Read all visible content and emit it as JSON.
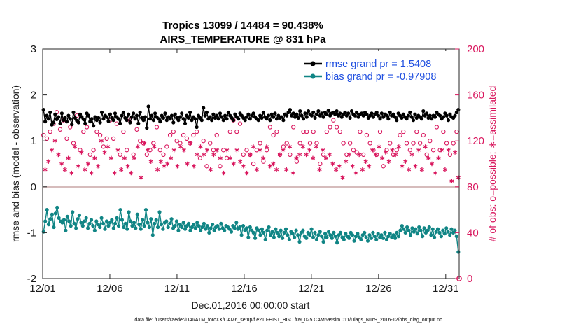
{
  "chart_data": {
    "type": "line",
    "title_line1": "Tropics 13099 / 14484 = 90.438%",
    "title_line2": "AIRS_TEMPERATURE @ 831 hPa",
    "xlabel": "Dec.01,2016 00:00:00 start",
    "ylabel_left": "rmse and bias (model - observation)",
    "ylabel_right": "# of obs: o=possible; ∗=assimilated",
    "x_range": [
      1,
      32
    ],
    "y_range_left": [
      -2,
      3
    ],
    "y_range_right": [
      0,
      200
    ],
    "x_ticks": [
      {
        "value": 1,
        "label": "12/01"
      },
      {
        "value": 6,
        "label": "12/06"
      },
      {
        "value": 11,
        "label": "12/11"
      },
      {
        "value": 16,
        "label": "12/16"
      },
      {
        "value": 21,
        "label": "12/21"
      },
      {
        "value": 26,
        "label": "12/26"
      },
      {
        "value": 31,
        "label": "12/31"
      }
    ],
    "y_ticks_left": [
      "-2",
      "-1",
      "0",
      "1",
      "2",
      "3"
    ],
    "y_ticks_right": [
      "0",
      "40",
      "80",
      "120",
      "160",
      "200"
    ],
    "legend": [
      {
        "label": "rmse grand pr = 1.5408",
        "color": "#000000"
      },
      {
        "label": "bias grand pr = -0.97908",
        "color": "#108585"
      }
    ],
    "series": [
      {
        "name": "rmse",
        "axis": "left",
        "color": "#000000",
        "values": [
          1.68,
          1.42,
          1.55,
          1.48,
          1.62,
          1.35,
          1.4,
          1.58,
          1.47,
          1.52,
          1.38,
          1.6,
          1.45,
          1.5,
          1.42,
          1.55,
          1.48,
          1.36,
          1.62,
          1.5,
          1.44,
          1.4,
          1.58,
          1.52,
          1.47,
          1.38,
          1.6,
          1.55,
          1.42,
          1.48,
          1.33,
          1.52,
          1.45,
          1.5,
          1.4,
          1.62,
          1.48,
          1.55,
          1.52,
          1.43,
          1.58,
          1.5,
          1.45,
          1.6,
          1.52,
          1.48,
          1.38,
          1.55,
          1.62,
          1.5,
          1.45,
          1.58,
          1.4,
          1.52,
          1.6,
          1.48,
          1.55,
          1.38,
          1.62,
          1.5,
          1.45,
          1.52,
          1.28,
          1.75,
          1.48,
          1.55,
          1.45,
          1.6,
          1.52,
          1.48,
          1.42,
          1.55,
          1.5,
          1.6,
          1.45,
          1.52,
          1.48,
          1.55,
          1.4,
          1.58,
          1.5,
          1.45,
          1.52,
          1.6,
          1.48,
          1.38,
          1.55,
          1.5,
          1.62,
          1.45,
          1.52,
          1.48,
          1.3,
          1.55,
          1.5,
          1.45,
          1.72,
          1.55,
          1.62,
          1.48,
          1.52,
          1.45,
          1.58,
          1.5,
          1.55,
          1.48,
          1.6,
          1.52,
          1.45,
          1.55,
          1.48,
          1.62,
          1.55,
          1.5,
          1.45,
          1.58,
          1.52,
          1.48,
          1.6,
          1.55,
          1.5,
          1.45,
          1.52,
          1.58,
          1.48,
          1.55,
          1.6,
          1.52,
          1.48,
          1.45,
          1.55,
          1.5,
          1.62,
          1.52,
          1.48,
          1.55,
          1.45,
          1.58,
          1.52,
          1.6,
          1.48,
          1.55,
          1.5,
          1.52,
          1.45,
          1.58,
          1.55,
          1.62,
          1.68,
          1.55,
          1.6,
          1.52,
          1.58,
          1.5,
          1.65,
          1.55,
          1.48,
          1.6,
          1.52,
          1.65,
          1.58,
          1.55,
          1.62,
          1.5,
          1.58,
          1.65,
          1.55,
          1.6,
          1.52,
          1.62,
          1.58,
          1.66,
          1.55,
          1.6,
          1.62,
          1.58,
          1.65,
          1.55,
          1.6,
          1.52,
          1.58,
          1.62,
          1.55,
          1.6,
          1.5,
          1.65,
          1.58,
          1.55,
          1.62,
          1.52,
          1.58,
          1.6,
          1.55,
          1.62,
          1.58,
          1.5,
          1.55,
          1.6,
          1.52,
          1.58,
          1.62,
          1.55,
          1.48,
          1.6,
          1.52,
          1.58,
          1.55,
          1.48,
          1.62,
          1.55,
          1.58,
          1.52,
          1.45,
          1.6,
          1.55,
          1.5,
          1.58,
          1.52,
          1.48,
          1.55,
          1.62,
          1.52,
          1.45,
          1.58,
          1.5,
          1.55,
          1.52,
          1.48,
          1.65,
          1.55,
          1.6,
          1.5,
          1.55,
          1.48,
          1.55,
          1.52,
          1.62,
          1.58,
          1.55,
          1.48,
          1.52,
          1.6,
          1.55,
          1.45,
          1.58,
          1.52,
          1.5,
          1.55,
          1.62,
          1.68
        ]
      },
      {
        "name": "bias",
        "axis": "left",
        "color": "#108585",
        "values": [
          -0.98,
          -0.75,
          -0.5,
          -0.82,
          -0.7,
          -0.6,
          -0.88,
          -0.58,
          -0.45,
          -0.68,
          -0.75,
          -0.78,
          -0.72,
          -0.95,
          -0.65,
          -0.75,
          -0.85,
          -0.55,
          -0.8,
          -0.9,
          -0.7,
          -0.62,
          -0.78,
          -0.85,
          -0.75,
          -0.68,
          -0.9,
          -0.8,
          -0.72,
          -0.85,
          -0.95,
          -0.75,
          -0.82,
          -0.88,
          -0.68,
          -0.8,
          -0.92,
          -0.75,
          -0.85,
          -0.78,
          -0.72,
          -0.9,
          -0.8,
          -0.68,
          -0.85,
          -0.5,
          -0.72,
          -0.88,
          -0.8,
          -0.92,
          -0.55,
          -0.75,
          -0.85,
          -0.78,
          -0.9,
          -0.6,
          -0.82,
          -0.92,
          -0.72,
          -0.85,
          -0.5,
          -0.78,
          -0.88,
          -0.7,
          -1.05,
          -0.8,
          -0.72,
          -0.88,
          -0.55,
          -0.82,
          -0.92,
          -0.78,
          -0.75,
          -0.88,
          -0.8,
          -0.7,
          -0.9,
          -0.85,
          -0.75,
          -0.95,
          -0.82,
          -0.88,
          -0.78,
          -0.92,
          -0.85,
          -0.8,
          -0.95,
          -0.88,
          -0.82,
          -0.9,
          -0.78,
          -0.85,
          -0.95,
          -0.88,
          -0.8,
          -0.92,
          -0.85,
          -1.0,
          -0.9,
          -0.82,
          -0.95,
          -0.88,
          -0.85,
          -0.92,
          -0.8,
          -0.9,
          -0.95,
          -0.85,
          -0.88,
          -0.92,
          -0.98,
          -0.85,
          -0.9,
          -0.78,
          -0.92,
          -0.88,
          -1.05,
          -0.85,
          -0.95,
          -0.9,
          -1.1,
          -0.88,
          -0.95,
          -1.0,
          -1.12,
          -0.9,
          -0.95,
          -1.05,
          -0.92,
          -1.0,
          -1.15,
          -0.95,
          -0.88,
          -1.05,
          -0.98,
          -1.1,
          -0.92,
          -1.0,
          -1.08,
          -0.95,
          -1.12,
          -1.0,
          -0.92,
          -1.05,
          -1.15,
          -0.98,
          -1.02,
          -1.1,
          -0.95,
          -1.05,
          -1.2,
          -1.0,
          -0.95,
          -1.08,
          -1.12,
          -1.0,
          -1.05,
          -0.92,
          -1.1,
          -1.0,
          -1.15,
          -1.05,
          -0.98,
          -1.08,
          -1.2,
          -1.02,
          -1.1,
          -0.98,
          -1.05,
          -1.12,
          -1.0,
          -1.08,
          -1.22,
          -1.05,
          -1.0,
          -1.1,
          -1.15,
          -1.02,
          -1.08,
          -1.12,
          -1.0,
          -1.05,
          -1.18,
          -1.08,
          -1.02,
          -1.1,
          -1.15,
          -1.05,
          -1.0,
          -1.1,
          -1.18,
          -1.05,
          -1.12,
          -1.0,
          -1.08,
          -1.15,
          -1.02,
          -1.1,
          -1.05,
          -1.12,
          -1.0,
          -1.15,
          -1.08,
          -1.02,
          -1.1,
          -1.05,
          -1.12,
          -1.0,
          -1.08,
          -0.95,
          -0.85,
          -0.92,
          -1.0,
          -0.88,
          -0.95,
          -1.05,
          -0.9,
          -0.98,
          -0.92,
          -1.02,
          -0.88,
          -0.95,
          -1.08,
          -0.9,
          -1.0,
          -0.95,
          -0.88,
          -1.05,
          -0.92,
          -1.1,
          -0.98,
          -0.92,
          -1.0,
          -1.08,
          -0.95,
          -1.02,
          -0.9,
          -0.98,
          -1.05,
          -0.92,
          -1.0,
          -0.95,
          -1.08,
          -1.42
        ]
      },
      {
        "name": "obs possible",
        "axis": "right",
        "marker": "o",
        "color": "#d9175e",
        "values": [
          125,
          116,
          122,
          112,
          128,
          120,
          135,
          118,
          145,
          110,
          130,
          125,
          138,
          115,
          122,
          108,
          132,
          120,
          118,
          128,
          142,
          135,
          112,
          125,
          128,
          118,
          132,
          122,
          108,
          138,
          112,
          120,
          128,
          118,
          125,
          132,
          115,
          108,
          122,
          128,
          138,
          112,
          122,
          128,
          135,
          118,
          108,
          132,
          128,
          120,
          112,
          125,
          138,
          118,
          108,
          125,
          130,
          112,
          120,
          122,
          118,
          132,
          108,
          128,
          112,
          102,
          118,
          125,
          132,
          118,
          112,
          128,
          108,
          122,
          115,
          118,
          125,
          112,
          128,
          108,
          120,
          132,
          118,
          112,
          125,
          108,
          122,
          130,
          118,
          108,
          125,
          112,
          128,
          118,
          105,
          135,
          120,
          112,
          98,
          128,
          118,
          132,
          112,
          102,
          125,
          118,
          98,
          128,
          112,
          132,
          105,
          118,
          128,
          108,
          138,
          118,
          128,
          112,
          135,
          128,
          108,
          120,
          112,
          132,
          108,
          118,
          100,
          128,
          112,
          138,
          118,
          108,
          102,
          125,
          112,
          118,
          132,
          120,
          125,
          110,
          128,
          118,
          108,
          132,
          115,
          125,
          118,
          128,
          108,
          118,
          132,
          112,
          102,
          125,
          118,
          98,
          128,
          112,
          128,
          122,
          118,
          112,
          128,
          108,
          118,
          132,
          100,
          118,
          108,
          118,
          128,
          108,
          132,
          118,
          138,
          112,
          132,
          120,
          128,
          105,
          118,
          132,
          108,
          98,
          118,
          132,
          112,
          122,
          110,
          118,
          128,
          118,
          108,
          112,
          125,
          132,
          118,
          122,
          112,
          115,
          108,
          118,
          128,
          108,
          98,
          122,
          112,
          125,
          118,
          128,
          108,
          122,
          112,
          118,
          125,
          108,
          128,
          125,
          118,
          128,
          112,
          138,
          118,
          120,
          128,
          108,
          118,
          112,
          125,
          132,
          108,
          118,
          120,
          138,
          112,
          105,
          132,
          118,
          112,
          122,
          128,
          108,
          118,
          125,
          108,
          130,
          118,
          112,
          128,
          118
        ]
      },
      {
        "name": "obs assimilated",
        "axis": "right",
        "marker": "*",
        "color": "#d9175e",
        "values": [
          110,
          95,
          118,
          102,
          90,
          112,
          105,
          120,
          98,
          108,
          115,
          100,
          125,
          95,
          110,
          105,
          118,
          92,
          108,
          115,
          102,
          98,
          120,
          110,
          105,
          95,
          115,
          100,
          108,
          92,
          118,
          105,
          112,
          98,
          108,
          120,
          95,
          110,
          102,
          115,
          98,
          105,
          118,
          92,
          108,
          112,
          100,
          95,
          115,
          105,
          120,
          98,
          108,
          92,
          112,
          105,
          98,
          115,
          102,
          88,
          108,
          118,
          95,
          112,
          105,
          102,
          98,
          115,
          108,
          95,
          120,
          102,
          112,
          98,
          108,
          100,
          115,
          105,
          92,
          112,
          108,
          98,
          105,
          115,
          95,
          112,
          108,
          100,
          92,
          118,
          105,
          98,
          112,
          108,
          95,
          115,
          102,
          108,
          98,
          112,
          105,
          95,
          118,
          108,
          100,
          112,
          98,
          105,
          115,
          92,
          108,
          112,
          98,
          105,
          118,
          100,
          95,
          112,
          108,
          102,
          115,
          98,
          105,
          92,
          112,
          108,
          98,
          115,
          102,
          95,
          108,
          112,
          100,
          105,
          92,
          115,
          108,
          98,
          112,
          100,
          105,
          95,
          118,
          108,
          98,
          112,
          102,
          95,
          108,
          115,
          100,
          92,
          112,
          105,
          98,
          108,
          95,
          115,
          102,
          108,
          92,
          112,
          100,
          105,
          98,
          115,
          108,
          95,
          102,
          112,
          98,
          105,
          92,
          108,
          115,
          100,
          112,
          95,
          105,
          98,
          108,
          88,
          112,
          102,
          95,
          108,
          115,
          98,
          105,
          92,
          112,
          108,
          100,
          95,
          115,
          102,
          108,
          98,
          105,
          112,
          95,
          108,
          100,
          115,
          98,
          105,
          92,
          110,
          108,
          102,
          95,
          112,
          100,
          108,
          95,
          115,
          105,
          98,
          108,
          102,
          112,
          95,
          100,
          108,
          115,
          98,
          105,
          112,
          102,
          95,
          108,
          115,
          98,
          105,
          112,
          100,
          108,
          92,
          115,
          105,
          98,
          112,
          108,
          95,
          102,
          112,
          105,
          85,
          98,
          110,
          102,
          88
        ]
      }
    ]
  },
  "footnote": "data file: /Users/raeder/DAI/ATM_forcXX/CAM6_setup/f.e21.FHIST_BGC.f09_025.CAM6assim.011/Diags_NTrS_2016-12/obs_diag_output.nc"
}
